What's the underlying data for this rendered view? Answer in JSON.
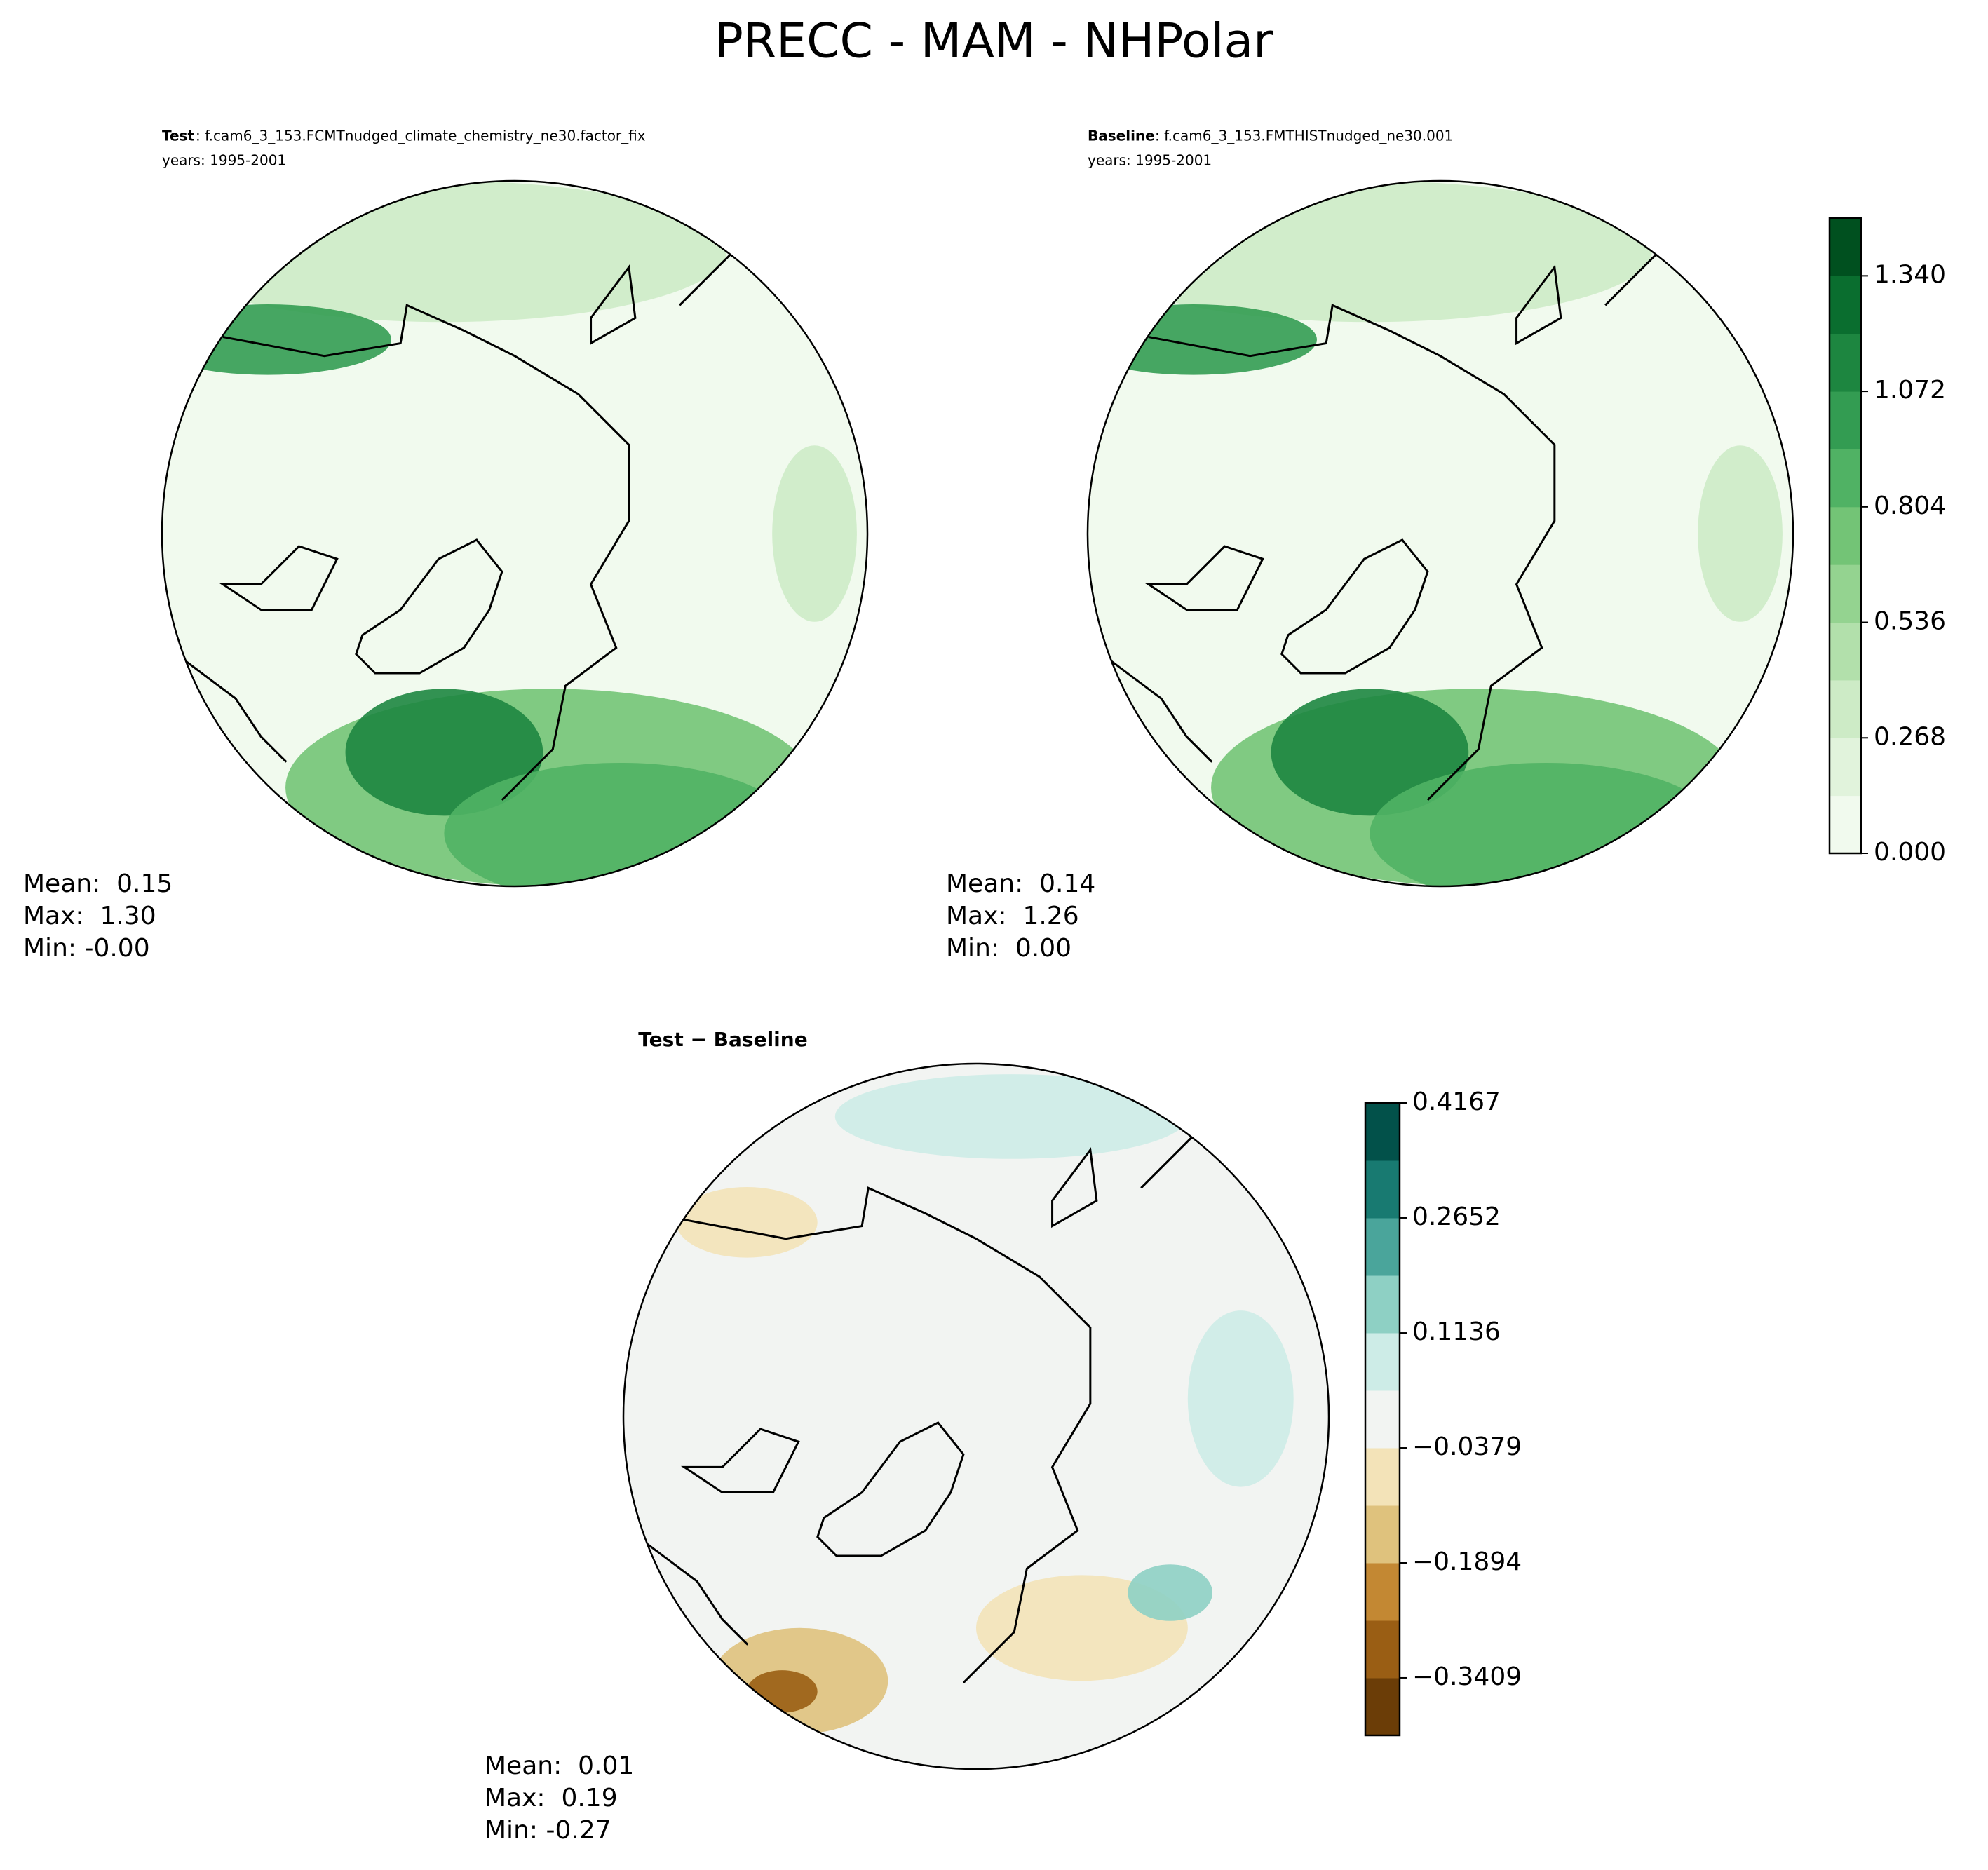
{
  "title": "PRECC - MAM - NHPolar",
  "panels": [
    {
      "label": "Test",
      "case": ": f.cam6_3_153.FCMTnudged_climate_chemistry_ne30.factor_fix",
      "years": "years: 1995-2001",
      "stats": [
        "Mean:  0.15",
        "Max:  1.30",
        "Min: -0.00"
      ]
    },
    {
      "label": "Baseline",
      "case": ": f.cam6_3_153.FMTHISTnudged_ne30.001",
      "years": "years: 1995-2001",
      "stats": [
        "Mean:  0.14",
        "Max:  1.26",
        "Min:  0.00"
      ]
    },
    {
      "label": "Test − Baseline",
      "stats": [
        "Mean:  0.01",
        "Max:  0.19",
        "Min: -0.27"
      ]
    }
  ],
  "colorbars": [
    {
      "ylim": [
        0,
        1.474
      ],
      "ticks": [
        {
          "value": 0,
          "label": "0.000"
        },
        0.268,
        0.536,
        0.804,
        {
          "value": 1.072,
          "label": "1.072"
        },
        {
          "value": 1.34,
          "label": "1.340"
        }
      ],
      "colors": [
        "#f1faee",
        "#e1f3dc",
        "#cdebc6",
        "#b2e0ab",
        "#94d390",
        "#73c476",
        "#50b264",
        "#339c52",
        "#1d8640",
        "#0a6e2f",
        "#00501f"
      ]
    },
    {
      "ylim": [
        -0.4167,
        0.4167
      ],
      "ticks": [
        {
          "value": -0.3409,
          "label": "−0.3409"
        },
        {
          "value": -0.1894,
          "label": "−0.1894"
        },
        {
          "value": -0.0379,
          "label": "−0.0379"
        },
        0.1136,
        0.2652,
        0.4167
      ],
      "colors": [
        "#6b3d07",
        "#9a5e14",
        "#c38833",
        "#dfc27d",
        "#f3e3b8",
        "#f2f4f2",
        "#cdece7",
        "#8ed0c4",
        "#4aa59b",
        "#187a71",
        "#02514a"
      ]
    }
  ]
}
